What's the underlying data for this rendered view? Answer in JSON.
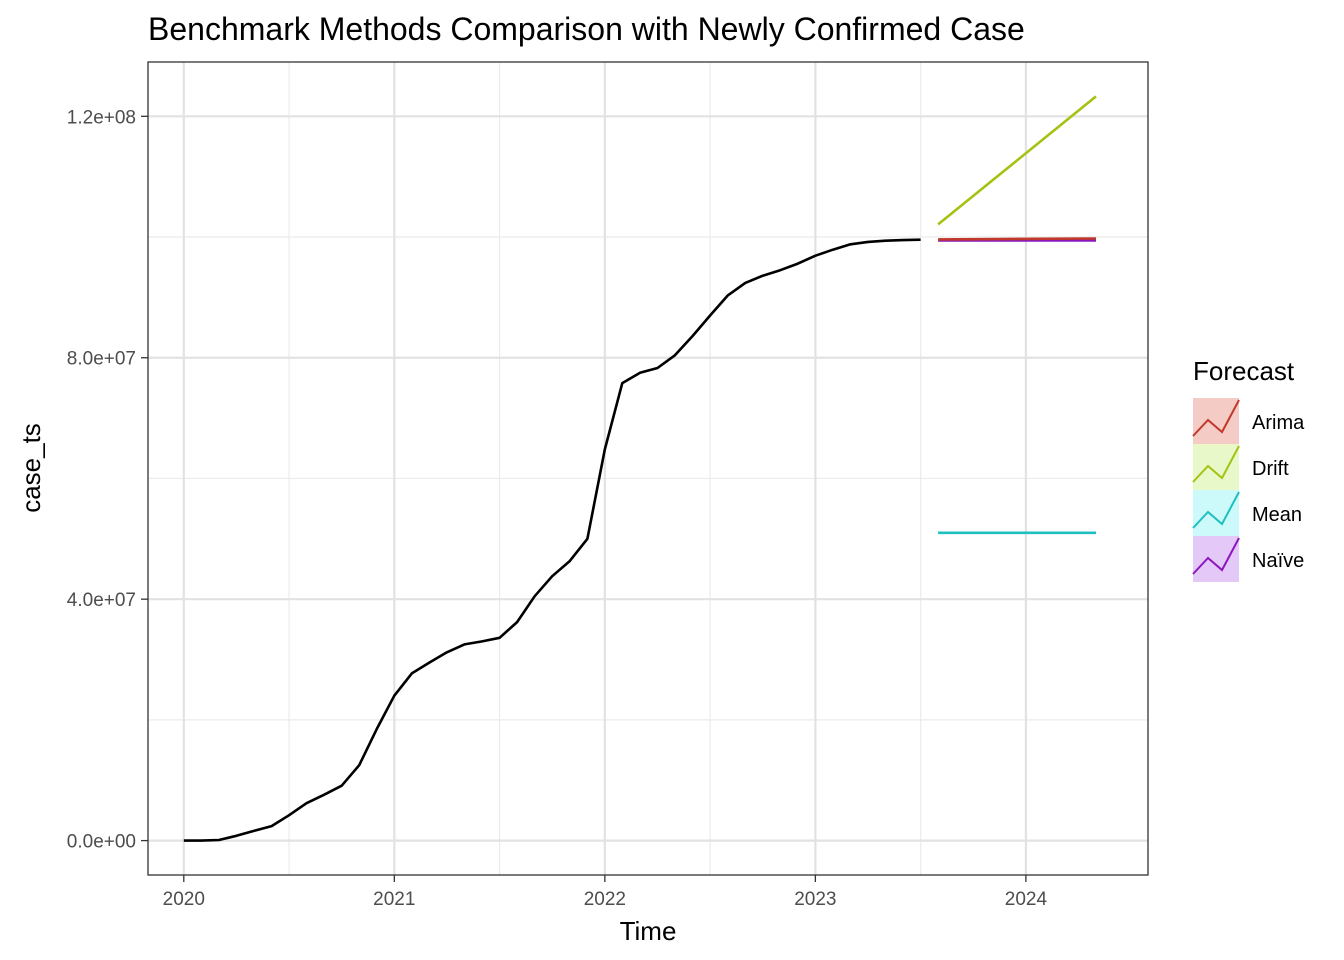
{
  "chart_data": {
    "type": "line",
    "title": "Benchmark Methods Comparison with Newly Confirmed Case",
    "xlabel": "Time",
    "ylabel": "case_ts",
    "xlim": [
      2019.83,
      2024.58
    ],
    "ylim": [
      -5700000,
      129000000
    ],
    "x_ticks": [
      2020,
      2021,
      2022,
      2023,
      2024
    ],
    "x_tick_labels": [
      "2020",
      "2021",
      "2022",
      "2023",
      "2024"
    ],
    "y_ticks": [
      0,
      40000000,
      80000000,
      120000000
    ],
    "y_tick_labels": [
      "0.0e+00",
      "4.0e+07",
      "8.0e+07",
      "1.2e+08"
    ],
    "grid": true,
    "legend": {
      "title": "Forecast",
      "position": "right"
    },
    "observed": {
      "color": "#000000",
      "x": [
        2020.0,
        2020.083,
        2020.167,
        2020.25,
        2020.333,
        2020.417,
        2020.5,
        2020.583,
        2020.667,
        2020.75,
        2020.833,
        2020.917,
        2021.0,
        2021.083,
        2021.167,
        2021.25,
        2021.333,
        2021.417,
        2021.5,
        2021.583,
        2021.667,
        2021.75,
        2021.833,
        2021.917,
        2022.0,
        2022.083,
        2022.167,
        2022.25,
        2022.333,
        2022.417,
        2022.5,
        2022.583,
        2022.667,
        2022.75,
        2022.833,
        2022.917,
        2023.0,
        2023.083,
        2023.167,
        2023.25,
        2023.333,
        2023.417,
        2023.5
      ],
      "y": [
        0,
        0,
        100000,
        800000,
        1600000,
        2400000,
        4200000,
        6200000,
        7600000,
        9100000,
        12500000,
        18500000,
        24000000,
        27700000,
        29500000,
        31200000,
        32500000,
        33000000,
        33600000,
        36200000,
        40500000,
        43800000,
        46300000,
        50000000,
        64800000,
        75800000,
        77500000,
        78300000,
        80400000,
        83600000,
        87000000,
        90300000,
        92400000,
        93600000,
        94500000,
        95600000,
        96900000,
        97900000,
        98800000,
        99200000,
        99400000,
        99500000,
        99550000
      ]
    },
    "series": [
      {
        "name": "Arima",
        "color": "#c0392b",
        "band_color": "#f5cbc6",
        "x": [
          2023.583,
          2024.333
        ],
        "y": [
          99600000,
          99750000
        ]
      },
      {
        "name": "Drift",
        "color": "#a3c312",
        "band_color": "#e8f8c8",
        "x": [
          2023.583,
          2024.333
        ],
        "y": [
          102100000,
          123300000
        ]
      },
      {
        "name": "Mean",
        "color": "#1fbfc2",
        "band_color": "#ccfafa",
        "x": [
          2023.583,
          2024.333
        ],
        "y": [
          51000000,
          51000000
        ]
      },
      {
        "name": "Naïve",
        "color": "#8a17c0",
        "band_color": "#e4c8f8",
        "x": [
          2023.583,
          2024.333
        ],
        "y": [
          99450000,
          99450000
        ]
      }
    ]
  }
}
